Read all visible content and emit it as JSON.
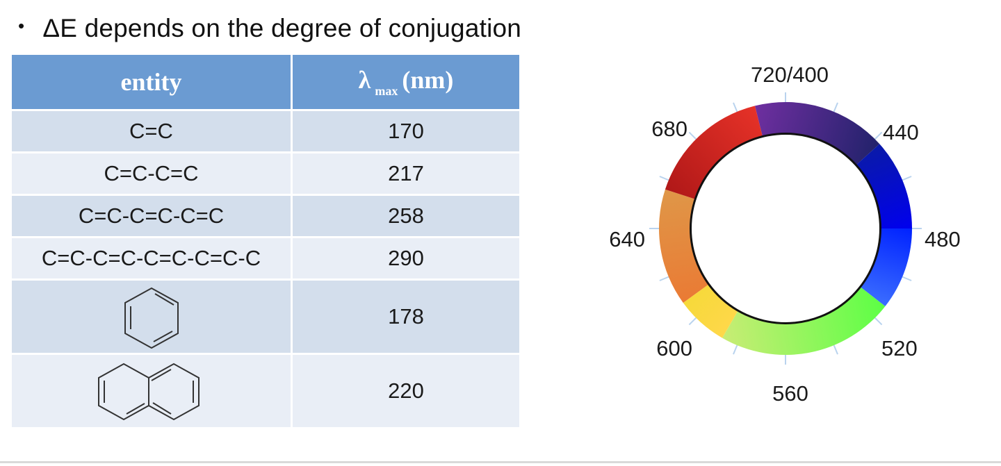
{
  "bullet": {
    "symbol": "•",
    "text": "ΔE depends on the degree of conjugation"
  },
  "table": {
    "headers": {
      "entity": "entity",
      "lambda_symbol": "λ",
      "lambda_sub": "max",
      "lambda_unit": "(nm)"
    },
    "rows": [
      {
        "entity": "C=C",
        "lambda": "170"
      },
      {
        "entity": "C=C-C=C",
        "lambda": "217"
      },
      {
        "entity": "C=C-C=C-C=C",
        "lambda": "258"
      },
      {
        "entity": "C=C-C=C-C=C-C=C-C",
        "lambda": "290"
      },
      {
        "entity_icon": "benzene-structure-icon",
        "lambda": "178"
      },
      {
        "entity_icon": "naphthalene-structure-icon",
        "lambda": "220"
      }
    ]
  },
  "color_wheel": {
    "labels": [
      "720/400",
      "440",
      "480",
      "520",
      "560",
      "600",
      "640",
      "680"
    ],
    "segments": [
      {
        "name": "violet",
        "from": "#6f2fa0",
        "to": "#22226b"
      },
      {
        "name": "blue",
        "from": "#0a1aa8",
        "to": "#0000ee"
      },
      {
        "name": "light-blue",
        "from": "#0022ff",
        "to": "#3b6dff"
      },
      {
        "name": "green",
        "from": "#5cff45",
        "to": "#c9ec75"
      },
      {
        "name": "yellow",
        "from": "#ffd84a",
        "to": "#f6d93a"
      },
      {
        "name": "orange",
        "from": "#ea7a34",
        "to": "#df9748"
      },
      {
        "name": "red",
        "from": "#b01818",
        "to": "#e63228"
      }
    ]
  }
}
